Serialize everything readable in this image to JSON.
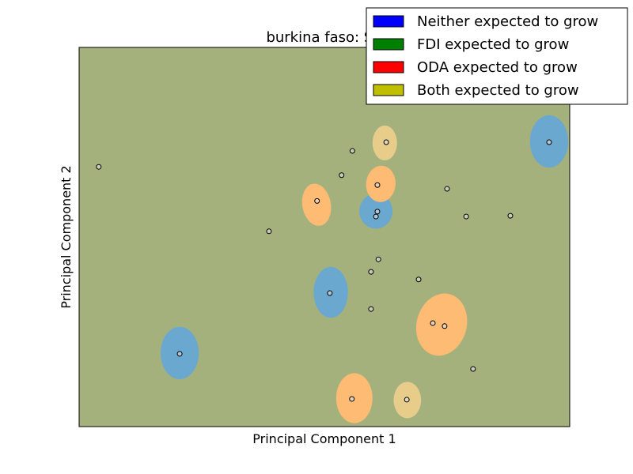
{
  "chart_data": {
    "type": "scatter",
    "title": "burkina faso: SV",
    "xlabel": "Principal Component 1",
    "ylabel": "Principal Component 2",
    "xlim": [
      0,
      100
    ],
    "ylim": [
      0,
      100
    ],
    "ticks_visible": false,
    "grid": false,
    "legend_position": "top-right",
    "background_region_color": "#a5b17d",
    "legend": [
      {
        "label": "Neither expected to grow",
        "color": "#0000ff"
      },
      {
        "label": "FDI expected to grow",
        "color": "#008000"
      },
      {
        "label": "ODA expected to grow",
        "color": "#ff0000"
      },
      {
        "label": "Both expected to grow",
        "color": "#bfbf00"
      }
    ],
    "regions": [
      {
        "class": "Neither expected to grow",
        "color": "#6aa8cf",
        "cx": 95.8,
        "cy": 75.2,
        "rx": 3.9,
        "ry": 6.9,
        "rot": 0
      },
      {
        "class": "Neither expected to grow",
        "color": "#6aa8cf",
        "cx": 60.5,
        "cy": 56.8,
        "rx": 3.4,
        "ry": 4.6,
        "rot": 0
      },
      {
        "class": "Neither expected to grow",
        "color": "#6aa8cf",
        "cx": 51.3,
        "cy": 35.4,
        "rx": 3.5,
        "ry": 6.7,
        "rot": 0
      },
      {
        "class": "Neither expected to grow",
        "color": "#6aa8cf",
        "cx": 20.5,
        "cy": 19.4,
        "rx": 3.9,
        "ry": 6.9,
        "rot": 0
      },
      {
        "class": "ODA expected to grow",
        "color": "#fdbb73",
        "cx": 48.4,
        "cy": 58.5,
        "rx": 2.9,
        "ry": 5.6,
        "rot": -10
      },
      {
        "class": "ODA expected to grow",
        "color": "#fdbb73",
        "cx": 61.5,
        "cy": 64.0,
        "rx": 3.0,
        "ry": 4.8,
        "rot": 5
      },
      {
        "class": "ODA expected to grow",
        "color": "#fdbb73",
        "cx": 73.9,
        "cy": 26.9,
        "rx": 5.1,
        "ry": 8.3,
        "rot": 15
      },
      {
        "class": "ODA expected to grow",
        "color": "#fdbb73",
        "cx": 56.1,
        "cy": 7.5,
        "rx": 3.7,
        "ry": 6.6,
        "rot": 0
      },
      {
        "class": "Both expected to grow",
        "color": "#e8cc8a",
        "cx": 62.3,
        "cy": 74.8,
        "rx": 2.5,
        "ry": 4.6,
        "rot": 0
      },
      {
        "class": "Both expected to grow",
        "color": "#e8cc8a",
        "cx": 66.9,
        "cy": 7.0,
        "rx": 2.8,
        "ry": 4.8,
        "rot": 0
      }
    ],
    "points": [
      {
        "x": 4.0,
        "y": 68.5
      },
      {
        "x": 55.7,
        "y": 72.7
      },
      {
        "x": 62.6,
        "y": 75.0
      },
      {
        "x": 95.8,
        "y": 75.0
      },
      {
        "x": 53.5,
        "y": 66.3
      },
      {
        "x": 60.8,
        "y": 63.7
      },
      {
        "x": 75.0,
        "y": 62.7
      },
      {
        "x": 48.5,
        "y": 59.5
      },
      {
        "x": 60.8,
        "y": 56.7
      },
      {
        "x": 60.5,
        "y": 55.4
      },
      {
        "x": 78.9,
        "y": 55.4
      },
      {
        "x": 87.9,
        "y": 55.6
      },
      {
        "x": 38.7,
        "y": 51.5
      },
      {
        "x": 61.0,
        "y": 44.1
      },
      {
        "x": 59.5,
        "y": 40.8
      },
      {
        "x": 69.2,
        "y": 38.8
      },
      {
        "x": 51.1,
        "y": 35.2
      },
      {
        "x": 59.5,
        "y": 31.0
      },
      {
        "x": 72.1,
        "y": 27.3
      },
      {
        "x": 74.5,
        "y": 26.5
      },
      {
        "x": 20.5,
        "y": 19.2
      },
      {
        "x": 80.3,
        "y": 15.2
      },
      {
        "x": 55.6,
        "y": 7.3
      },
      {
        "x": 66.8,
        "y": 7.1
      }
    ]
  }
}
